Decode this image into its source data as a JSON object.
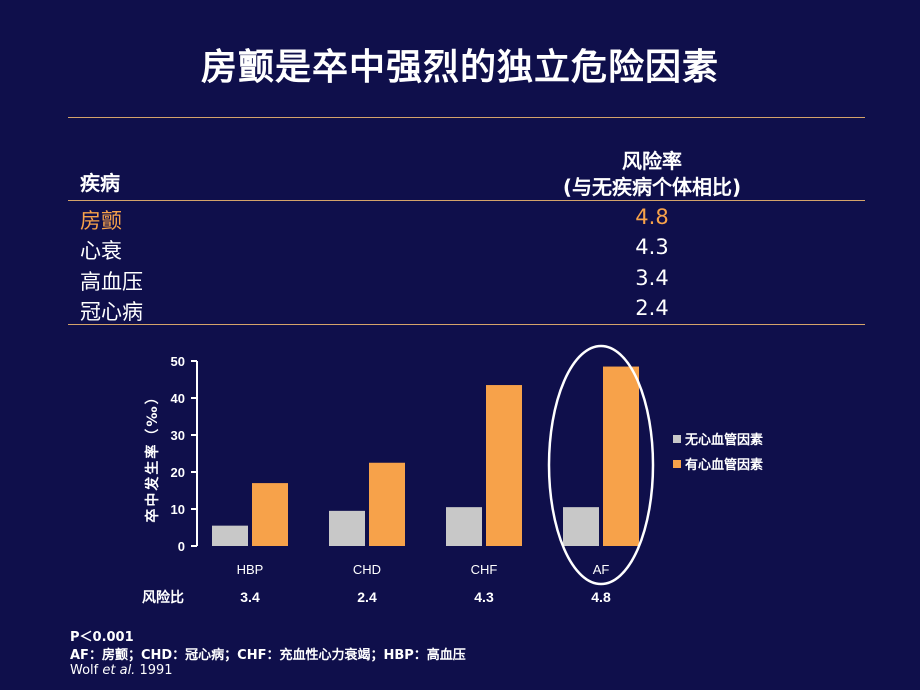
{
  "slide": {
    "title": "房颤是卒中强烈的独立危险因素"
  },
  "table": {
    "col1_header": "疾病",
    "col2_header_line1": "风险率",
    "col2_header_line2": "(与无疾病个体相比)",
    "rows": [
      {
        "disease": "房颤",
        "ratio": "4.8",
        "highlight": true
      },
      {
        "disease": "心衰",
        "ratio": "4.3",
        "highlight": false
      },
      {
        "disease": "高血压",
        "ratio": "3.4",
        "highlight": false
      },
      {
        "disease": "冠心病",
        "ratio": "2.4",
        "highlight": false
      }
    ]
  },
  "chart_data": {
    "type": "bar",
    "title": "",
    "ylabel": "卒中发生率（‰）",
    "xlabel": "",
    "ylim": [
      0,
      50
    ],
    "yticks": [
      0,
      10,
      20,
      30,
      40,
      50
    ],
    "categories": [
      "HBP",
      "CHD",
      "CHF",
      "AF"
    ],
    "series": [
      {
        "name": "无心血管因素",
        "color": "#c8c8c8",
        "values": [
          5.5,
          9.5,
          10.5,
          10.5
        ]
      },
      {
        "name": "有心血管因素",
        "color": "#f7a24a",
        "values": [
          17,
          22.5,
          43.5,
          48.5
        ]
      }
    ],
    "risk_label": "风险比",
    "risk_ratios": [
      "3.4",
      "2.4",
      "4.3",
      "4.8"
    ],
    "highlighted_category": "AF",
    "legend_position": "right",
    "grid": false
  },
  "footnotes": {
    "line1": "P＜0.001",
    "line2": "AF：房颤；CHD：冠心病；CHF：充血性心力衰竭；HBP：高血压",
    "citation_author": "Wolf ",
    "citation_etal": "et al.",
    "citation_year": " 1991"
  },
  "colors": {
    "background": "#0f0f4b",
    "accent": "#f7a24a",
    "rule": "#d4a36a",
    "ellipse": "#ffffff"
  }
}
